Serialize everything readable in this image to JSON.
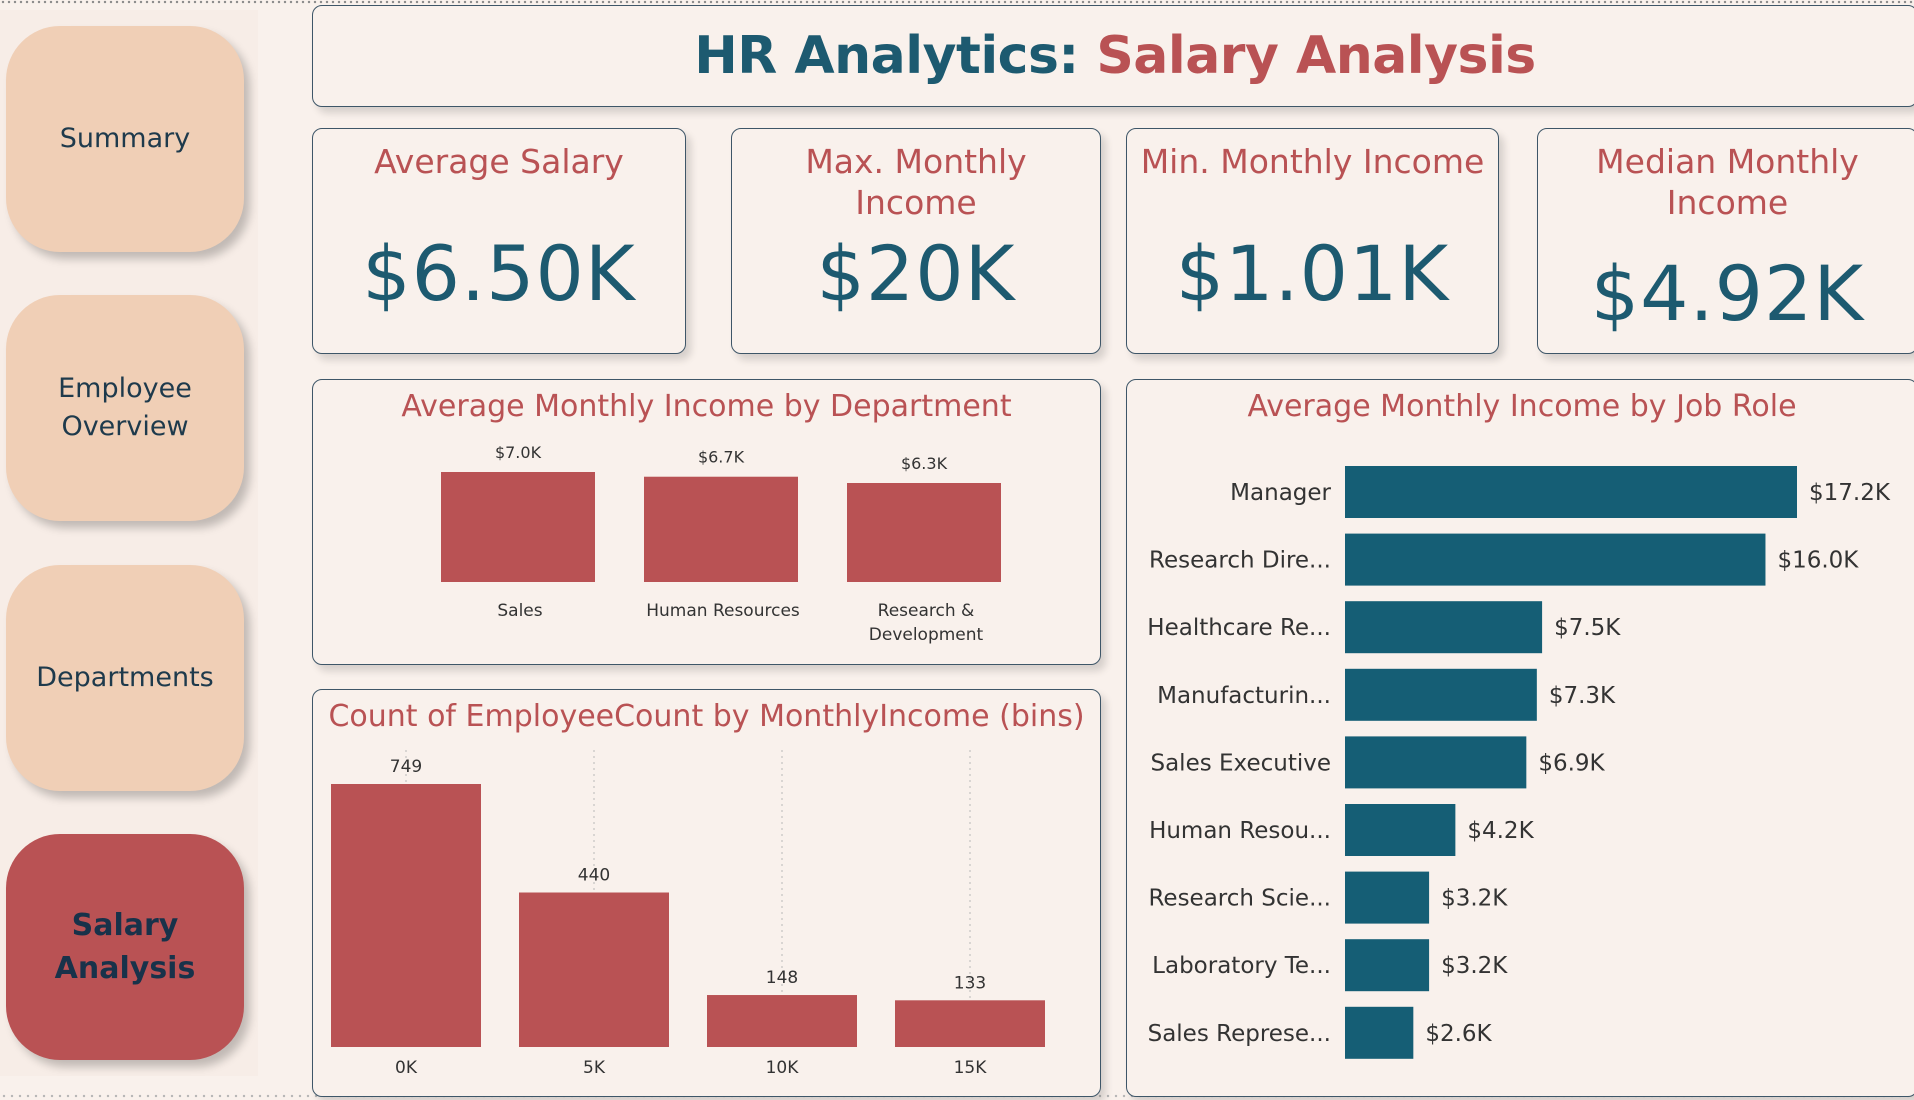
{
  "nav": {
    "items": [
      {
        "label": "Summary",
        "active": false
      },
      {
        "label": "Employee Overview",
        "active": false
      },
      {
        "label": "Departments",
        "active": false
      },
      {
        "label": "Salary Analysis",
        "active": true
      }
    ]
  },
  "header": {
    "title_prefix": "HR Analytics:",
    "title_highlight": "Salary Analysis"
  },
  "kpis": [
    {
      "label": "Average Salary",
      "value": "$6.50K"
    },
    {
      "label": "Max. Monthly Income",
      "value": "$20K"
    },
    {
      "label": "Min. Monthly Income",
      "value": "$1.01K"
    },
    {
      "label": "Median Monthly Income",
      "value": "$4.92K"
    }
  ],
  "colors": {
    "accent_red": "#b95254",
    "accent_teal": "#1d5a70",
    "nav_button": "#f0cfb6",
    "background": "#f9f1ec"
  },
  "chart_data": [
    {
      "type": "bar",
      "title": "Average Monthly Income by Department",
      "categories": [
        "Sales",
        "Human Resources",
        "Research & Development"
      ],
      "values": [
        7.0,
        6.7,
        6.3
      ],
      "data_labels": [
        "$7.0K",
        "$6.7K",
        "$6.3K"
      ],
      "ylim": [
        0,
        7.0
      ],
      "color": "#b95254",
      "grid": false
    },
    {
      "type": "bar",
      "orientation": "horizontal",
      "title": "Average Monthly Income by Job Role",
      "categories": [
        "Manager",
        "Research Dire...",
        "Healthcare Re...",
        "Manufacturin...",
        "Sales Executive",
        "Human Resou...",
        "Research Scie...",
        "Laboratory Te...",
        "Sales Represe..."
      ],
      "values": [
        17.2,
        16.0,
        7.5,
        7.3,
        6.9,
        4.2,
        3.2,
        3.2,
        2.6
      ],
      "data_labels": [
        "$17.2K",
        "$16.0K",
        "$7.5K",
        "$7.3K",
        "$6.9K",
        "$4.2K",
        "$3.2K",
        "$3.2K",
        "$2.6K"
      ],
      "xlim": [
        0,
        17.2
      ],
      "color": "#155e75",
      "grid": false
    },
    {
      "type": "bar",
      "title": "Count of EmployeeCount by MonthlyIncome (bins)",
      "categories": [
        "0K",
        "5K",
        "10K",
        "15K"
      ],
      "values": [
        749,
        440,
        148,
        133
      ],
      "data_labels": [
        "749",
        "440",
        "148",
        "133"
      ],
      "ylim": [
        0,
        749
      ],
      "color": "#b95254",
      "grid": true
    }
  ]
}
